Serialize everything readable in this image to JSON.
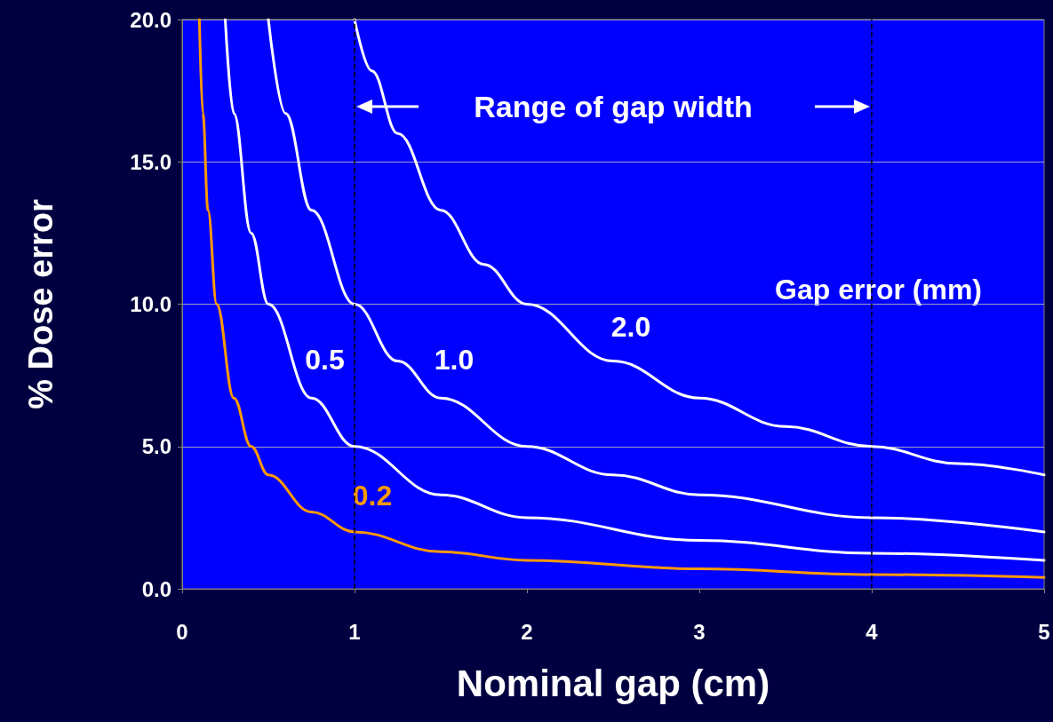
{
  "chart_data": {
    "type": "line",
    "xlabel": "Nominal gap (cm)",
    "ylabel": "% Dose error",
    "legend_title": "Gap error (mm)",
    "annotations": [
      "Range of gap width"
    ],
    "xlim": [
      0,
      5
    ],
    "xticks": [
      0,
      1,
      2,
      3,
      4,
      5
    ],
    "ylim": [
      0,
      20
    ],
    "yticks": [
      {
        "value": 0,
        "label": "0.0"
      },
      {
        "value": 5,
        "label": "5.0"
      },
      {
        "value": 10,
        "label": "10.0"
      },
      {
        "value": 15,
        "label": "15.0"
      },
      {
        "value": 20,
        "label": "20.0"
      }
    ],
    "grid": "y",
    "legend": false,
    "marker": "none",
    "line_style": "solid",
    "ref_lines": [
      {
        "axis": "x",
        "value": 1,
        "color": "#000000",
        "line_style": "dashed"
      },
      {
        "axis": "x",
        "value": 4,
        "color": "#000000",
        "line_style": "dashed"
      }
    ],
    "series": [
      {
        "name": "2.0",
        "color": "#ffffff",
        "x": [
          1,
          1.1,
          1.25,
          1.5,
          1.75,
          2,
          2.5,
          3,
          3.5,
          4,
          4.5,
          5
        ],
        "values": [
          20,
          18.2,
          16,
          13.3,
          11.4,
          10,
          8,
          6.7,
          5.7,
          5,
          4.4,
          4
        ]
      },
      {
        "name": "1.0",
        "color": "#ffffff",
        "x": [
          0.5,
          0.6,
          0.75,
          1,
          1.25,
          1.5,
          2,
          2.5,
          3,
          4,
          5
        ],
        "values": [
          20,
          16.7,
          13.3,
          10,
          8,
          6.7,
          5,
          4,
          3.3,
          2.5,
          2
        ]
      },
      {
        "name": "0.5",
        "color": "#ffffff",
        "x": [
          0.25,
          0.3,
          0.4,
          0.5,
          0.75,
          1,
          1.5,
          2,
          3,
          4,
          5
        ],
        "values": [
          20,
          16.7,
          12.5,
          10,
          6.7,
          5,
          3.3,
          2.5,
          1.7,
          1.25,
          1
        ]
      },
      {
        "name": "0.2",
        "color": "#ff9900",
        "x": [
          0.1,
          0.12,
          0.15,
          0.2,
          0.3,
          0.4,
          0.5,
          0.75,
          1,
          1.5,
          2,
          3,
          4,
          5
        ],
        "values": [
          20,
          16.7,
          13.3,
          10,
          6.7,
          5,
          4,
          2.7,
          2,
          1.3,
          1,
          0.7,
          0.5,
          0.4
        ]
      }
    ]
  }
}
